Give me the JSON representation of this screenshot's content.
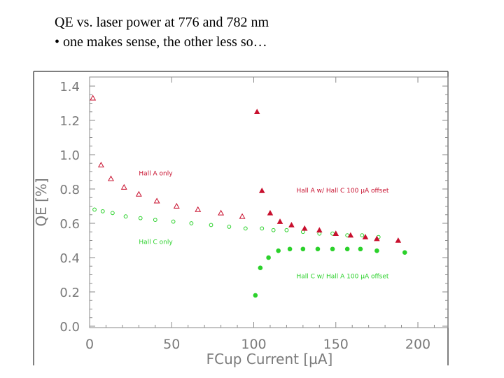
{
  "slide": {
    "title_line1": "QE vs. laser power at 776 and 782 nm",
    "title_line2": "• one makes sense, the other less so…"
  },
  "colors": {
    "red": "#c8102e",
    "green": "#2bd12b",
    "axis": "#888888"
  },
  "chart_data": {
    "type": "scatter",
    "xlabel": "FCup Current [µA]",
    "ylabel": "QE [%]",
    "xlim": [
      0,
      210
    ],
    "ylim": [
      0,
      1.45
    ],
    "x_ticks": [
      0,
      50,
      100,
      150,
      200
    ],
    "x_tick_labels": [
      "0",
      "50",
      "100",
      "150",
      "200"
    ],
    "y_ticks": [
      0.0,
      0.2,
      0.4,
      0.6,
      0.8,
      1.0,
      1.2,
      1.4
    ],
    "y_tick_labels": [
      "0.0",
      "0.2",
      "0.4",
      "0.6",
      "0.8",
      "1.0",
      "1.2",
      "1.4"
    ],
    "series": [
      {
        "name": "Hall A only",
        "marker": "open-triangle",
        "color": "#c8102e",
        "x": [
          2,
          7,
          13,
          21,
          30,
          41,
          53,
          66,
          80,
          93
        ],
        "y": [
          1.33,
          0.94,
          0.86,
          0.81,
          0.77,
          0.73,
          0.7,
          0.68,
          0.66,
          0.64
        ]
      },
      {
        "name": "Hall C only",
        "marker": "open-circle",
        "color": "#2bd12b",
        "x": [
          3,
          8,
          14,
          22,
          31,
          40,
          51,
          62,
          74,
          85,
          95,
          105,
          112,
          120,
          130,
          140,
          148,
          157,
          166,
          176
        ],
        "y": [
          0.68,
          0.67,
          0.66,
          0.64,
          0.63,
          0.62,
          0.61,
          0.6,
          0.59,
          0.58,
          0.57,
          0.57,
          0.56,
          0.56,
          0.55,
          0.54,
          0.54,
          0.53,
          0.53,
          0.52
        ]
      },
      {
        "name": "Hall A w/ Hall C 100 µA offset",
        "marker": "filled-triangle",
        "color": "#c8102e",
        "x": [
          102,
          105,
          110,
          116,
          123,
          131,
          140,
          150,
          159,
          168,
          175,
          188
        ],
        "y": [
          1.25,
          0.79,
          0.66,
          0.61,
          0.59,
          0.57,
          0.56,
          0.54,
          0.53,
          0.52,
          0.51,
          0.5
        ]
      },
      {
        "name": "Hall C w/ Hall A 100 µA offset",
        "marker": "filled-circle",
        "color": "#2bd12b",
        "x": [
          101,
          104,
          109,
          115,
          122,
          130,
          139,
          148,
          157,
          165,
          175,
          192
        ],
        "y": [
          0.18,
          0.34,
          0.4,
          0.44,
          0.45,
          0.45,
          0.45,
          0.45,
          0.45,
          0.45,
          0.44,
          0.43
        ]
      }
    ],
    "annotations": [
      {
        "text": "Hall A only",
        "x": 30,
        "y": 0.88,
        "color": "#c8102e"
      },
      {
        "text": "Hall A w/ Hall C 100 µA offset",
        "x": 126,
        "y": 0.78,
        "color": "#c8102e"
      },
      {
        "text": "Hall C only",
        "x": 30,
        "y": 0.48,
        "color": "#2bd12b"
      },
      {
        "text": "Hall C w/ Hall A 100 µA offset",
        "x": 126,
        "y": 0.28,
        "color": "#2bd12b"
      }
    ]
  }
}
